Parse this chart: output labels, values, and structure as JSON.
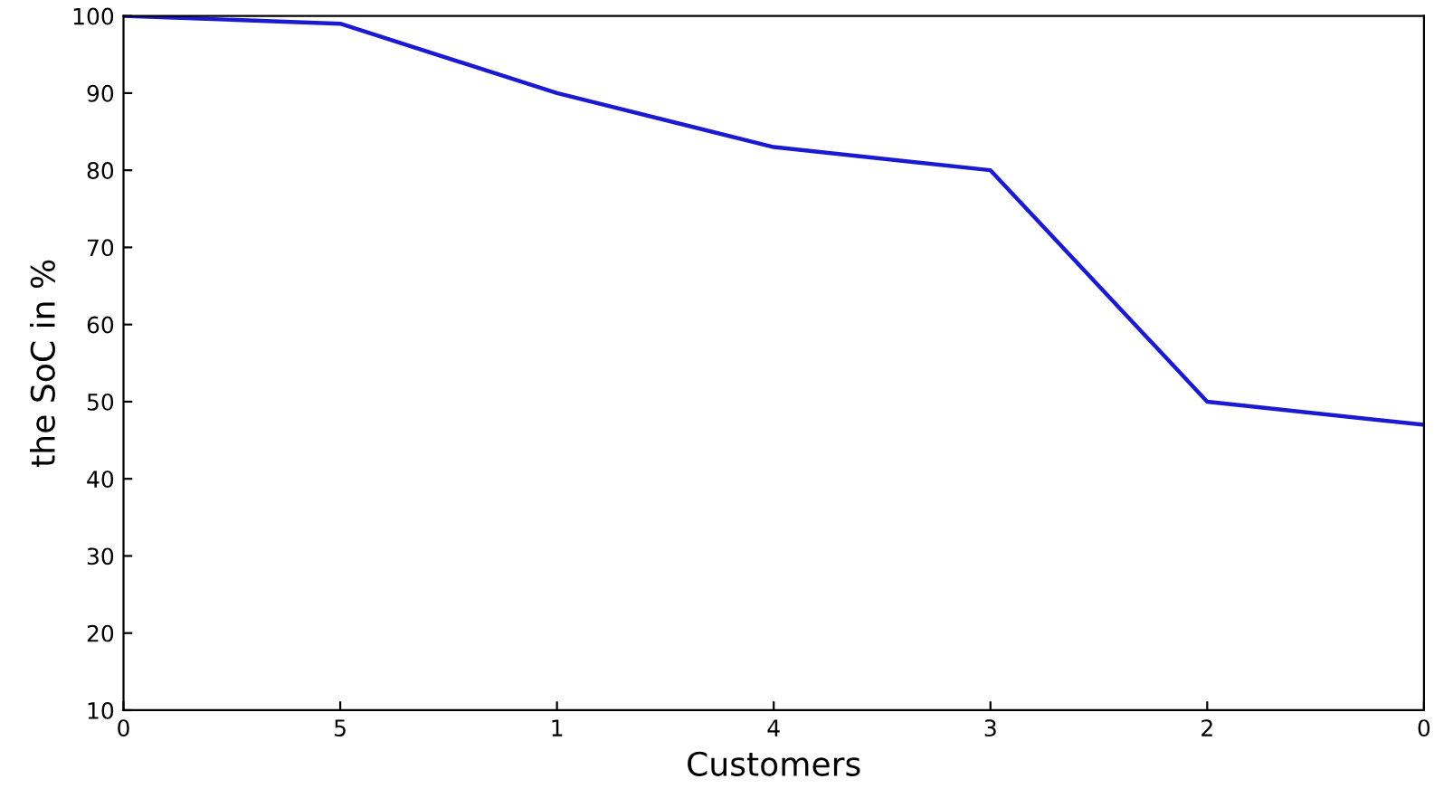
{
  "chart_data": {
    "type": "line",
    "xlabel": "Customers",
    "ylabel": "the SoC in %",
    "categories": [
      "0",
      "5",
      "1",
      "4",
      "3",
      "2",
      "0"
    ],
    "series": [
      {
        "color": "#1a1ad2",
        "values": [
          100,
          99,
          90,
          83,
          80,
          50,
          47
        ]
      }
    ],
    "ylim": [
      10,
      100
    ],
    "yticks": [
      10,
      20,
      30,
      40,
      50,
      60,
      70,
      80,
      90,
      100
    ],
    "grid": false,
    "legend": false,
    "marker": "none",
    "line_style": "solid"
  }
}
